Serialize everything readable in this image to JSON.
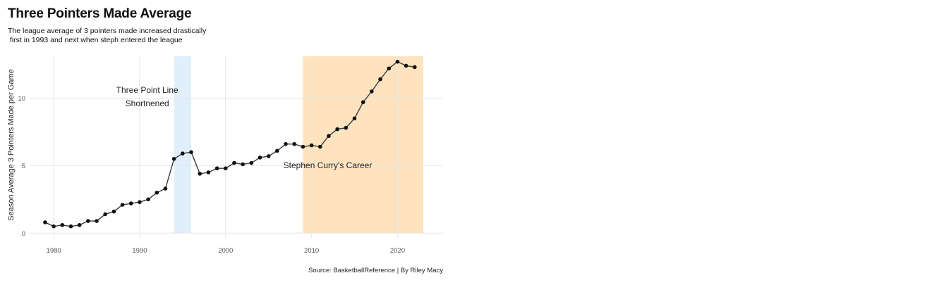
{
  "title": "Three Pointers Made Average",
  "subtitle": "The league average of 3 pointers made increased drastically\n first in 1993 and next when steph entered the league",
  "caption": "Source: BasketballReference | By Riley Macy",
  "colors": {
    "line": "#3a3a3a",
    "point": "#111111",
    "shade_blue": "#d6eaf8",
    "shade_orange": "#fdd9a8",
    "grid": "#e6e6e6"
  },
  "chart_data": {
    "type": "line",
    "ylabel": "Season Average 3 Pointers Made per Game",
    "xlim": [
      1977.2,
      2025.3
    ],
    "ylim": [
      -0.35,
      13.1
    ],
    "x_ticks": [
      1980,
      1990,
      2000,
      2010,
      2020
    ],
    "y_ticks": [
      0,
      5,
      10
    ],
    "grid": true,
    "series": [
      {
        "x": [
          1979,
          1980,
          1981,
          1982,
          1983,
          1984,
          1985,
          1986,
          1987,
          1988,
          1989,
          1990,
          1991,
          1992,
          1993,
          1994,
          1995,
          1996,
          1997,
          1998,
          1999,
          2000,
          2001,
          2002,
          2003,
          2004,
          2005,
          2006,
          2007,
          2008,
          2009,
          2010,
          2011,
          2012,
          2013,
          2014,
          2015,
          2016,
          2017,
          2018,
          2019,
          2020,
          2021,
          2022
        ],
        "values": [
          0.8,
          0.5,
          0.6,
          0.5,
          0.6,
          0.9,
          0.9,
          1.4,
          1.6,
          2.1,
          2.2,
          2.3,
          2.5,
          3.0,
          3.3,
          5.5,
          5.9,
          6.0,
          4.4,
          4.5,
          4.8,
          4.8,
          5.2,
          5.1,
          5.2,
          5.6,
          5.7,
          6.1,
          6.6,
          6.6,
          6.4,
          6.5,
          6.4,
          7.2,
          7.7,
          7.8,
          8.5,
          9.7,
          10.5,
          11.4,
          12.2,
          12.7,
          12.4,
          12.3
        ]
      }
    ],
    "shaded_regions": [
      {
        "x_start": 1994,
        "x_end": 1996,
        "color": "#d6eaf8",
        "label_lines": [
          "Three Point Line",
          "Shortnened"
        ],
        "label_x": 1994.0,
        "label_y": [
          10.4,
          9.4
        ]
      },
      {
        "x_start": 2009,
        "x_end": 2023,
        "color": "#fdd9a8",
        "label_lines": [
          "Stephen Curry's Career"
        ],
        "label_x": 2015.0,
        "label_y": [
          4.8
        ]
      }
    ]
  }
}
